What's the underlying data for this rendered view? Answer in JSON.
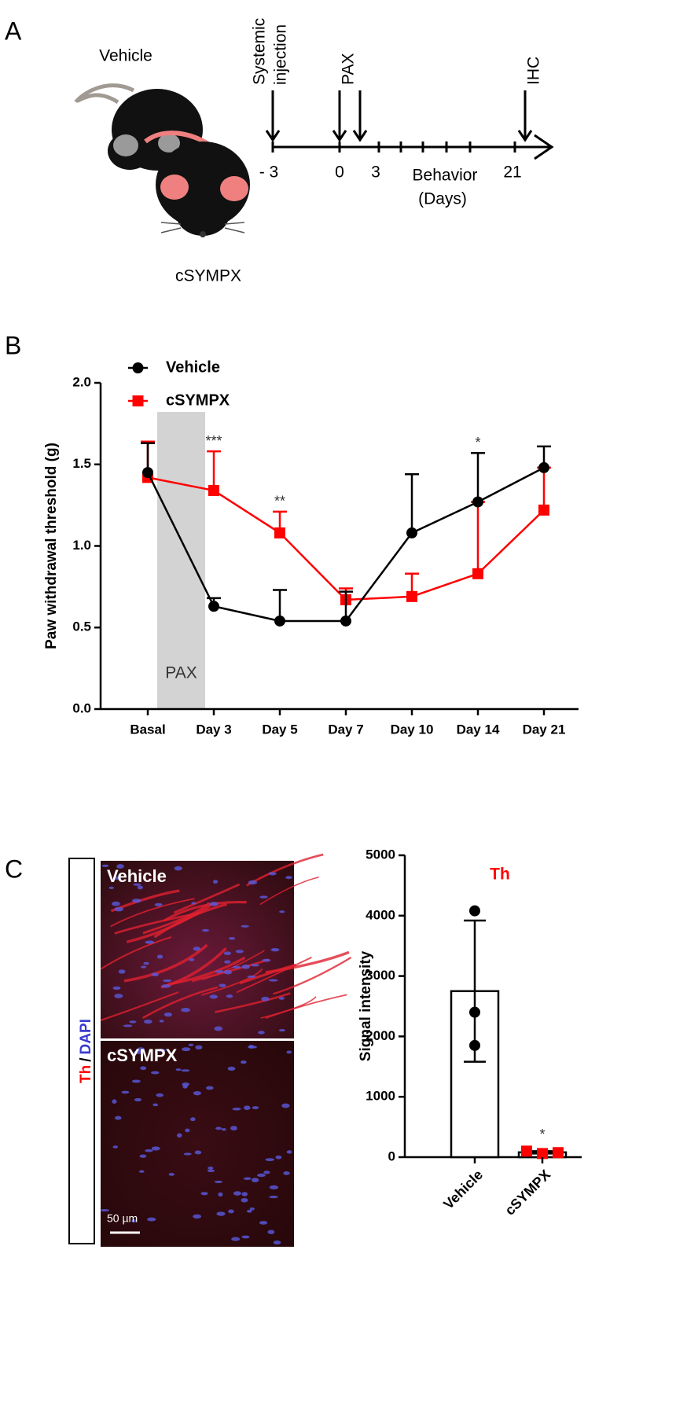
{
  "panel_a": {
    "label": "A",
    "vehicle": "Vehicle",
    "treated": "cSYMPX",
    "injection": [
      "Systemic",
      "injection"
    ],
    "pax": "PAX",
    "ihc": "IHC",
    "ticks": [
      "- 3",
      "0",
      "3",
      "21"
    ],
    "axis_label": [
      "Behavior",
      "(Days)"
    ]
  },
  "panel_c_images": {
    "label": "C",
    "stain": [
      "Th",
      "/",
      "DAPI"
    ],
    "top": "Vehicle",
    "bottom": "cSYMPX",
    "scale_bar": "50 µm"
  },
  "chart_data": [
    {
      "type": "line",
      "panel": "B",
      "y_label": "Paw withdrawal threshold (g)",
      "categories": [
        "Basal",
        "Day 3",
        "Day 5",
        "Day 7",
        "Day 10",
        "Day 14",
        "Day 21"
      ],
      "series": [
        {
          "name": "Vehicle",
          "color": "#000000",
          "marker": "circle",
          "values": [
            1.45,
            0.63,
            0.54,
            0.54,
            1.08,
            1.27,
            1.48
          ],
          "errors": [
            0.18,
            0.05,
            0.19,
            0.18,
            0.36,
            0.3,
            0.13
          ]
        },
        {
          "name": "cSYMPX",
          "color": "#ff0000",
          "marker": "square",
          "values": [
            1.42,
            1.34,
            1.08,
            0.67,
            0.69,
            0.83,
            1.22
          ],
          "errors": [
            0.22,
            0.24,
            0.13,
            0.07,
            0.14,
            0.44,
            0.26
          ]
        }
      ],
      "ylim": [
        0,
        2
      ],
      "yticks": [
        {
          "value": 0,
          "label": "0.0"
        },
        {
          "value": 0.5,
          "label": "0.5"
        },
        {
          "value": 1,
          "label": "1.0"
        },
        {
          "value": 1.5,
          "label": "1.5"
        },
        {
          "value": 2,
          "label": "2.0"
        }
      ],
      "shaded_region": {
        "label": "PAX",
        "from": "Basal",
        "to": "Day 3",
        "color": "#d3d3d3"
      },
      "annotations": [
        {
          "text": "***",
          "category": "Day 3"
        },
        {
          "text": "**",
          "category": "Day 5"
        },
        {
          "text": "*",
          "category": "Day 14"
        }
      ],
      "legend": "top-left"
    },
    {
      "type": "bar",
      "title": "Th",
      "y_label": "Signal intensity",
      "categories": [
        "Vehicle",
        "cSYMPX"
      ],
      "values": [
        2750,
        80
      ],
      "errors": [
        1170,
        20
      ],
      "points": [
        [
          4080,
          2400,
          1850
        ],
        [
          100,
          60,
          75
        ]
      ],
      "point_colors": [
        "#000000",
        "#ff0000"
      ],
      "ylim": [
        0,
        5000
      ],
      "yticks": [
        0,
        1000,
        2000,
        3000,
        4000,
        5000
      ],
      "annotations": [
        {
          "text": "*",
          "category": "cSYMPX"
        }
      ]
    }
  ]
}
